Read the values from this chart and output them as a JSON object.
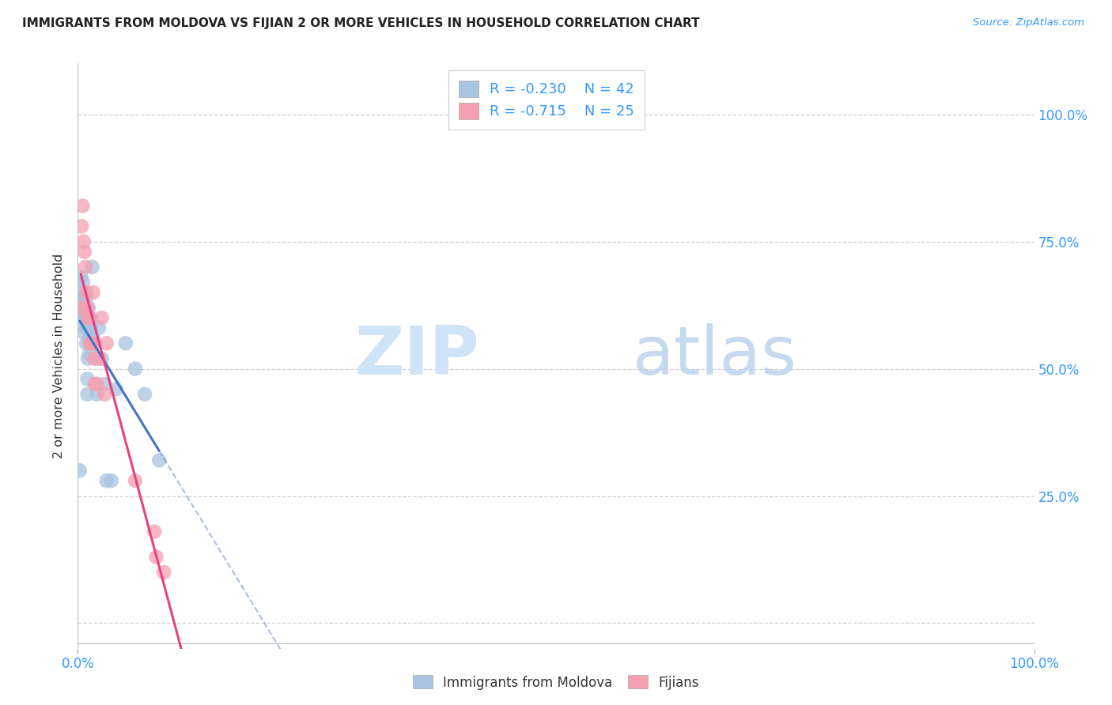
{
  "title": "IMMIGRANTS FROM MOLDOVA VS FIJIAN 2 OR MORE VEHICLES IN HOUSEHOLD CORRELATION CHART",
  "source": "Source: ZipAtlas.com",
  "ylabel": "2 or more Vehicles in Household",
  "ytick_labels": [
    "",
    "25.0%",
    "50.0%",
    "75.0%",
    "100.0%"
  ],
  "ytick_values": [
    0,
    0.25,
    0.5,
    0.75,
    1.0
  ],
  "watermark_zip": "ZIP",
  "watermark_atlas": "atlas",
  "legend_r1": "-0.230",
  "legend_n1": "42",
  "legend_r2": "-0.715",
  "legend_n2": "25",
  "legend_label1": "Immigrants from Moldova",
  "legend_label2": "Fijians",
  "blue_color": "#a8c4e0",
  "pink_color": "#f4a0b0",
  "blue_line_color": "#4472c4",
  "pink_line_color": "#e84080",
  "blue_scatter_x": [
    0.2,
    0.3,
    0.35,
    0.4,
    0.45,
    0.5,
    0.52,
    0.55,
    0.6,
    0.62,
    0.7,
    0.72,
    0.75,
    0.8,
    0.82,
    0.85,
    0.9,
    0.92,
    1.0,
    1.05,
    1.1,
    1.12,
    1.2,
    1.22,
    1.3,
    1.35,
    1.4,
    1.6,
    1.8,
    2.0,
    2.2,
    2.5,
    2.8,
    3.0,
    3.5,
    4.0,
    5.0,
    6.0,
    7.0,
    8.5,
    1.0,
    1.5
  ],
  "blue_scatter_y": [
    0.3,
    0.63,
    0.68,
    0.6,
    0.64,
    0.62,
    0.65,
    0.67,
    0.6,
    0.63,
    0.57,
    0.6,
    0.62,
    0.58,
    0.61,
    0.64,
    0.55,
    0.6,
    0.48,
    0.52,
    0.58,
    0.62,
    0.53,
    0.56,
    0.55,
    0.58,
    0.6,
    0.56,
    0.55,
    0.45,
    0.58,
    0.52,
    0.47,
    0.28,
    0.28,
    0.46,
    0.55,
    0.5,
    0.45,
    0.32,
    0.45,
    0.7
  ],
  "pink_scatter_x": [
    0.3,
    0.4,
    0.5,
    0.6,
    0.7,
    0.8,
    0.9,
    1.0,
    1.1,
    1.2,
    1.3,
    1.5,
    1.7,
    2.0,
    2.5,
    3.0,
    1.4,
    1.6,
    1.8,
    2.2,
    2.8,
    6.0,
    8.0,
    8.2,
    9.0
  ],
  "pink_scatter_y": [
    0.62,
    0.78,
    0.82,
    0.75,
    0.73,
    0.7,
    0.65,
    0.62,
    0.6,
    0.6,
    0.55,
    0.55,
    0.52,
    0.47,
    0.6,
    0.55,
    0.55,
    0.65,
    0.47,
    0.52,
    0.45,
    0.28,
    0.18,
    0.13,
    0.1
  ],
  "xlim": [
    0.0,
    100.0
  ],
  "ylim": [
    -0.05,
    1.1
  ],
  "background_color": "#ffffff",
  "grid_color": "#cccccc"
}
